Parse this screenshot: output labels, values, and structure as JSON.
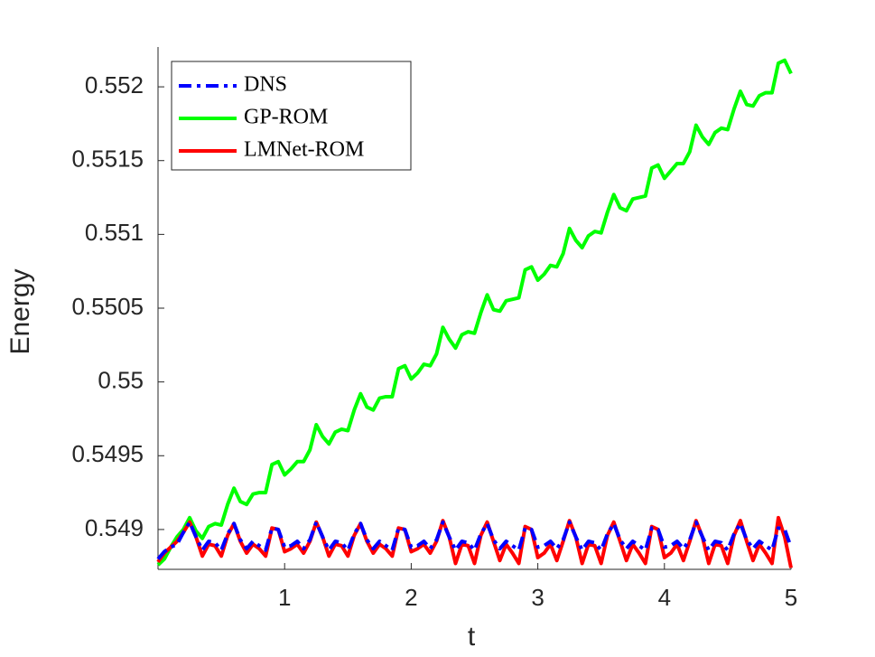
{
  "chart_data": {
    "type": "line",
    "xlabel": "t",
    "ylabel": "Energy",
    "xlim": [
      0,
      5
    ],
    "xticks": [
      1,
      2,
      3,
      4,
      5
    ],
    "ylim": [
      0.54873,
      0.55227
    ],
    "yticks": [
      0.549,
      0.5495,
      0.55,
      0.5505,
      0.551,
      0.5515,
      0.552
    ],
    "grid": false,
    "legend": "upper left",
    "x": [
      0,
      0.05,
      0.1,
      0.15,
      0.2,
      0.25,
      0.3,
      0.35,
      0.4,
      0.45,
      0.5,
      0.55,
      0.6,
      0.65,
      0.7,
      0.75,
      0.8,
      0.85,
      0.9,
      0.95,
      1,
      1.05,
      1.1,
      1.15,
      1.2,
      1.25,
      1.3,
      1.35,
      1.4,
      1.45,
      1.5,
      1.55,
      1.6,
      1.65,
      1.7,
      1.75,
      1.8,
      1.85,
      1.9,
      1.95,
      2,
      2.05,
      2.1,
      2.15,
      2.2,
      2.25,
      2.3,
      2.35,
      2.4,
      2.45,
      2.5,
      2.55,
      2.6,
      2.65,
      2.7,
      2.75,
      2.8,
      2.85,
      2.9,
      2.95,
      3,
      3.05,
      3.1,
      3.15,
      3.2,
      3.25,
      3.3,
      3.35,
      3.4,
      3.45,
      3.5,
      3.55,
      3.6,
      3.65,
      3.7,
      3.75,
      3.8,
      3.85,
      3.9,
      3.95,
      4,
      4.05,
      4.1,
      4.15,
      4.2,
      4.25,
      4.3,
      4.35,
      4.4,
      4.45,
      4.5,
      4.55,
      4.6,
      4.65,
      4.7,
      4.75,
      4.8,
      4.85,
      4.9,
      4.95,
      5
    ],
    "series": [
      {
        "name": "DNS",
        "color": "#0000ff",
        "line_style": "dashdot",
        "values": [
          0.5488,
          0.54885,
          0.54888,
          0.5489,
          0.54898,
          0.54905,
          0.54895,
          0.54886,
          0.54892,
          0.54891,
          0.54886,
          0.54897,
          0.54904,
          0.54893,
          0.54887,
          0.54892,
          0.54889,
          0.54886,
          0.54901,
          0.549,
          0.54888,
          0.54889,
          0.54892,
          0.54887,
          0.54893,
          0.54905,
          0.54895,
          0.54886,
          0.54892,
          0.54891,
          0.54886,
          0.54897,
          0.54904,
          0.54893,
          0.54887,
          0.54892,
          0.54889,
          0.54886,
          0.54901,
          0.549,
          0.54888,
          0.54889,
          0.54892,
          0.54887,
          0.54893,
          0.54905,
          0.54895,
          0.54886,
          0.54892,
          0.54891,
          0.54886,
          0.54897,
          0.54904,
          0.54893,
          0.54887,
          0.54892,
          0.54889,
          0.54886,
          0.54901,
          0.549,
          0.54888,
          0.54889,
          0.54892,
          0.54887,
          0.54893,
          0.54905,
          0.54895,
          0.54886,
          0.54892,
          0.54891,
          0.54886,
          0.54897,
          0.54904,
          0.54893,
          0.54887,
          0.54892,
          0.54889,
          0.54886,
          0.54901,
          0.549,
          0.54888,
          0.54889,
          0.54892,
          0.54887,
          0.54893,
          0.54905,
          0.54895,
          0.54886,
          0.54892,
          0.54891,
          0.54886,
          0.54897,
          0.54904,
          0.54893,
          0.54887,
          0.54892,
          0.54889,
          0.54886,
          0.54901,
          0.549,
          0.54888
        ]
      },
      {
        "name": "GP-ROM",
        "color": "#00ff00",
        "line_style": "solid",
        "values": [
          0.54876,
          0.5488,
          0.54888,
          0.54895,
          0.549,
          0.54908,
          0.54899,
          0.54894,
          0.54902,
          0.54904,
          0.54903,
          0.54917,
          0.54928,
          0.54919,
          0.54917,
          0.54924,
          0.54925,
          0.54925,
          0.54944,
          0.54946,
          0.54937,
          0.54941,
          0.54946,
          0.54946,
          0.54954,
          0.54971,
          0.54963,
          0.54958,
          0.54966,
          0.54968,
          0.54967,
          0.54981,
          0.54992,
          0.54983,
          0.54981,
          0.54989,
          0.5499,
          0.5499,
          0.55009,
          0.55011,
          0.55002,
          0.55006,
          0.55012,
          0.55011,
          0.55019,
          0.55037,
          0.55029,
          0.55023,
          0.55032,
          0.55034,
          0.55033,
          0.55047,
          0.55059,
          0.55049,
          0.55048,
          0.55055,
          0.55056,
          0.55057,
          0.55076,
          0.55078,
          0.55069,
          0.55073,
          0.55079,
          0.55078,
          0.55087,
          0.55104,
          0.55096,
          0.55091,
          0.55099,
          0.55102,
          0.55101,
          0.55115,
          0.55127,
          0.55118,
          0.55116,
          0.55124,
          0.55125,
          0.55126,
          0.55145,
          0.55147,
          0.55138,
          0.55143,
          0.55148,
          0.55148,
          0.55156,
          0.55174,
          0.55166,
          0.55161,
          0.55169,
          0.55172,
          0.55171,
          0.55185,
          0.55197,
          0.55188,
          0.55187,
          0.55194,
          0.55196,
          0.55196,
          0.55216,
          0.55218,
          0.55209
        ]
      },
      {
        "name": "LMNet-ROM",
        "color": "#ff0000",
        "line_style": "solid",
        "values": [
          0.54878,
          0.54884,
          0.54888,
          0.54892,
          0.54898,
          0.54905,
          0.54895,
          0.54882,
          0.5489,
          0.54889,
          0.54882,
          0.54896,
          0.54904,
          0.54892,
          0.54884,
          0.5489,
          0.54887,
          0.54882,
          0.54901,
          0.549,
          0.54885,
          0.54887,
          0.5489,
          0.54884,
          0.54892,
          0.54905,
          0.54895,
          0.54882,
          0.5489,
          0.54889,
          0.54882,
          0.54896,
          0.54904,
          0.54892,
          0.54884,
          0.5489,
          0.54887,
          0.54882,
          0.54901,
          0.549,
          0.54885,
          0.54887,
          0.5489,
          0.54884,
          0.54892,
          0.54906,
          0.54895,
          0.54877,
          0.5489,
          0.54889,
          0.54877,
          0.54896,
          0.54905,
          0.54892,
          0.54879,
          0.5489,
          0.54884,
          0.54877,
          0.54902,
          0.549,
          0.54881,
          0.54884,
          0.5489,
          0.54879,
          0.54892,
          0.54906,
          0.54895,
          0.54877,
          0.5489,
          0.54889,
          0.54877,
          0.54896,
          0.54905,
          0.54892,
          0.54879,
          0.5489,
          0.54884,
          0.54877,
          0.54902,
          0.549,
          0.54881,
          0.54884,
          0.5489,
          0.54879,
          0.54892,
          0.54906,
          0.54895,
          0.54877,
          0.5489,
          0.54889,
          0.54877,
          0.54896,
          0.54906,
          0.54892,
          0.54879,
          0.5489,
          0.54884,
          0.54877,
          0.54908,
          0.54895,
          0.54874
        ]
      }
    ]
  }
}
